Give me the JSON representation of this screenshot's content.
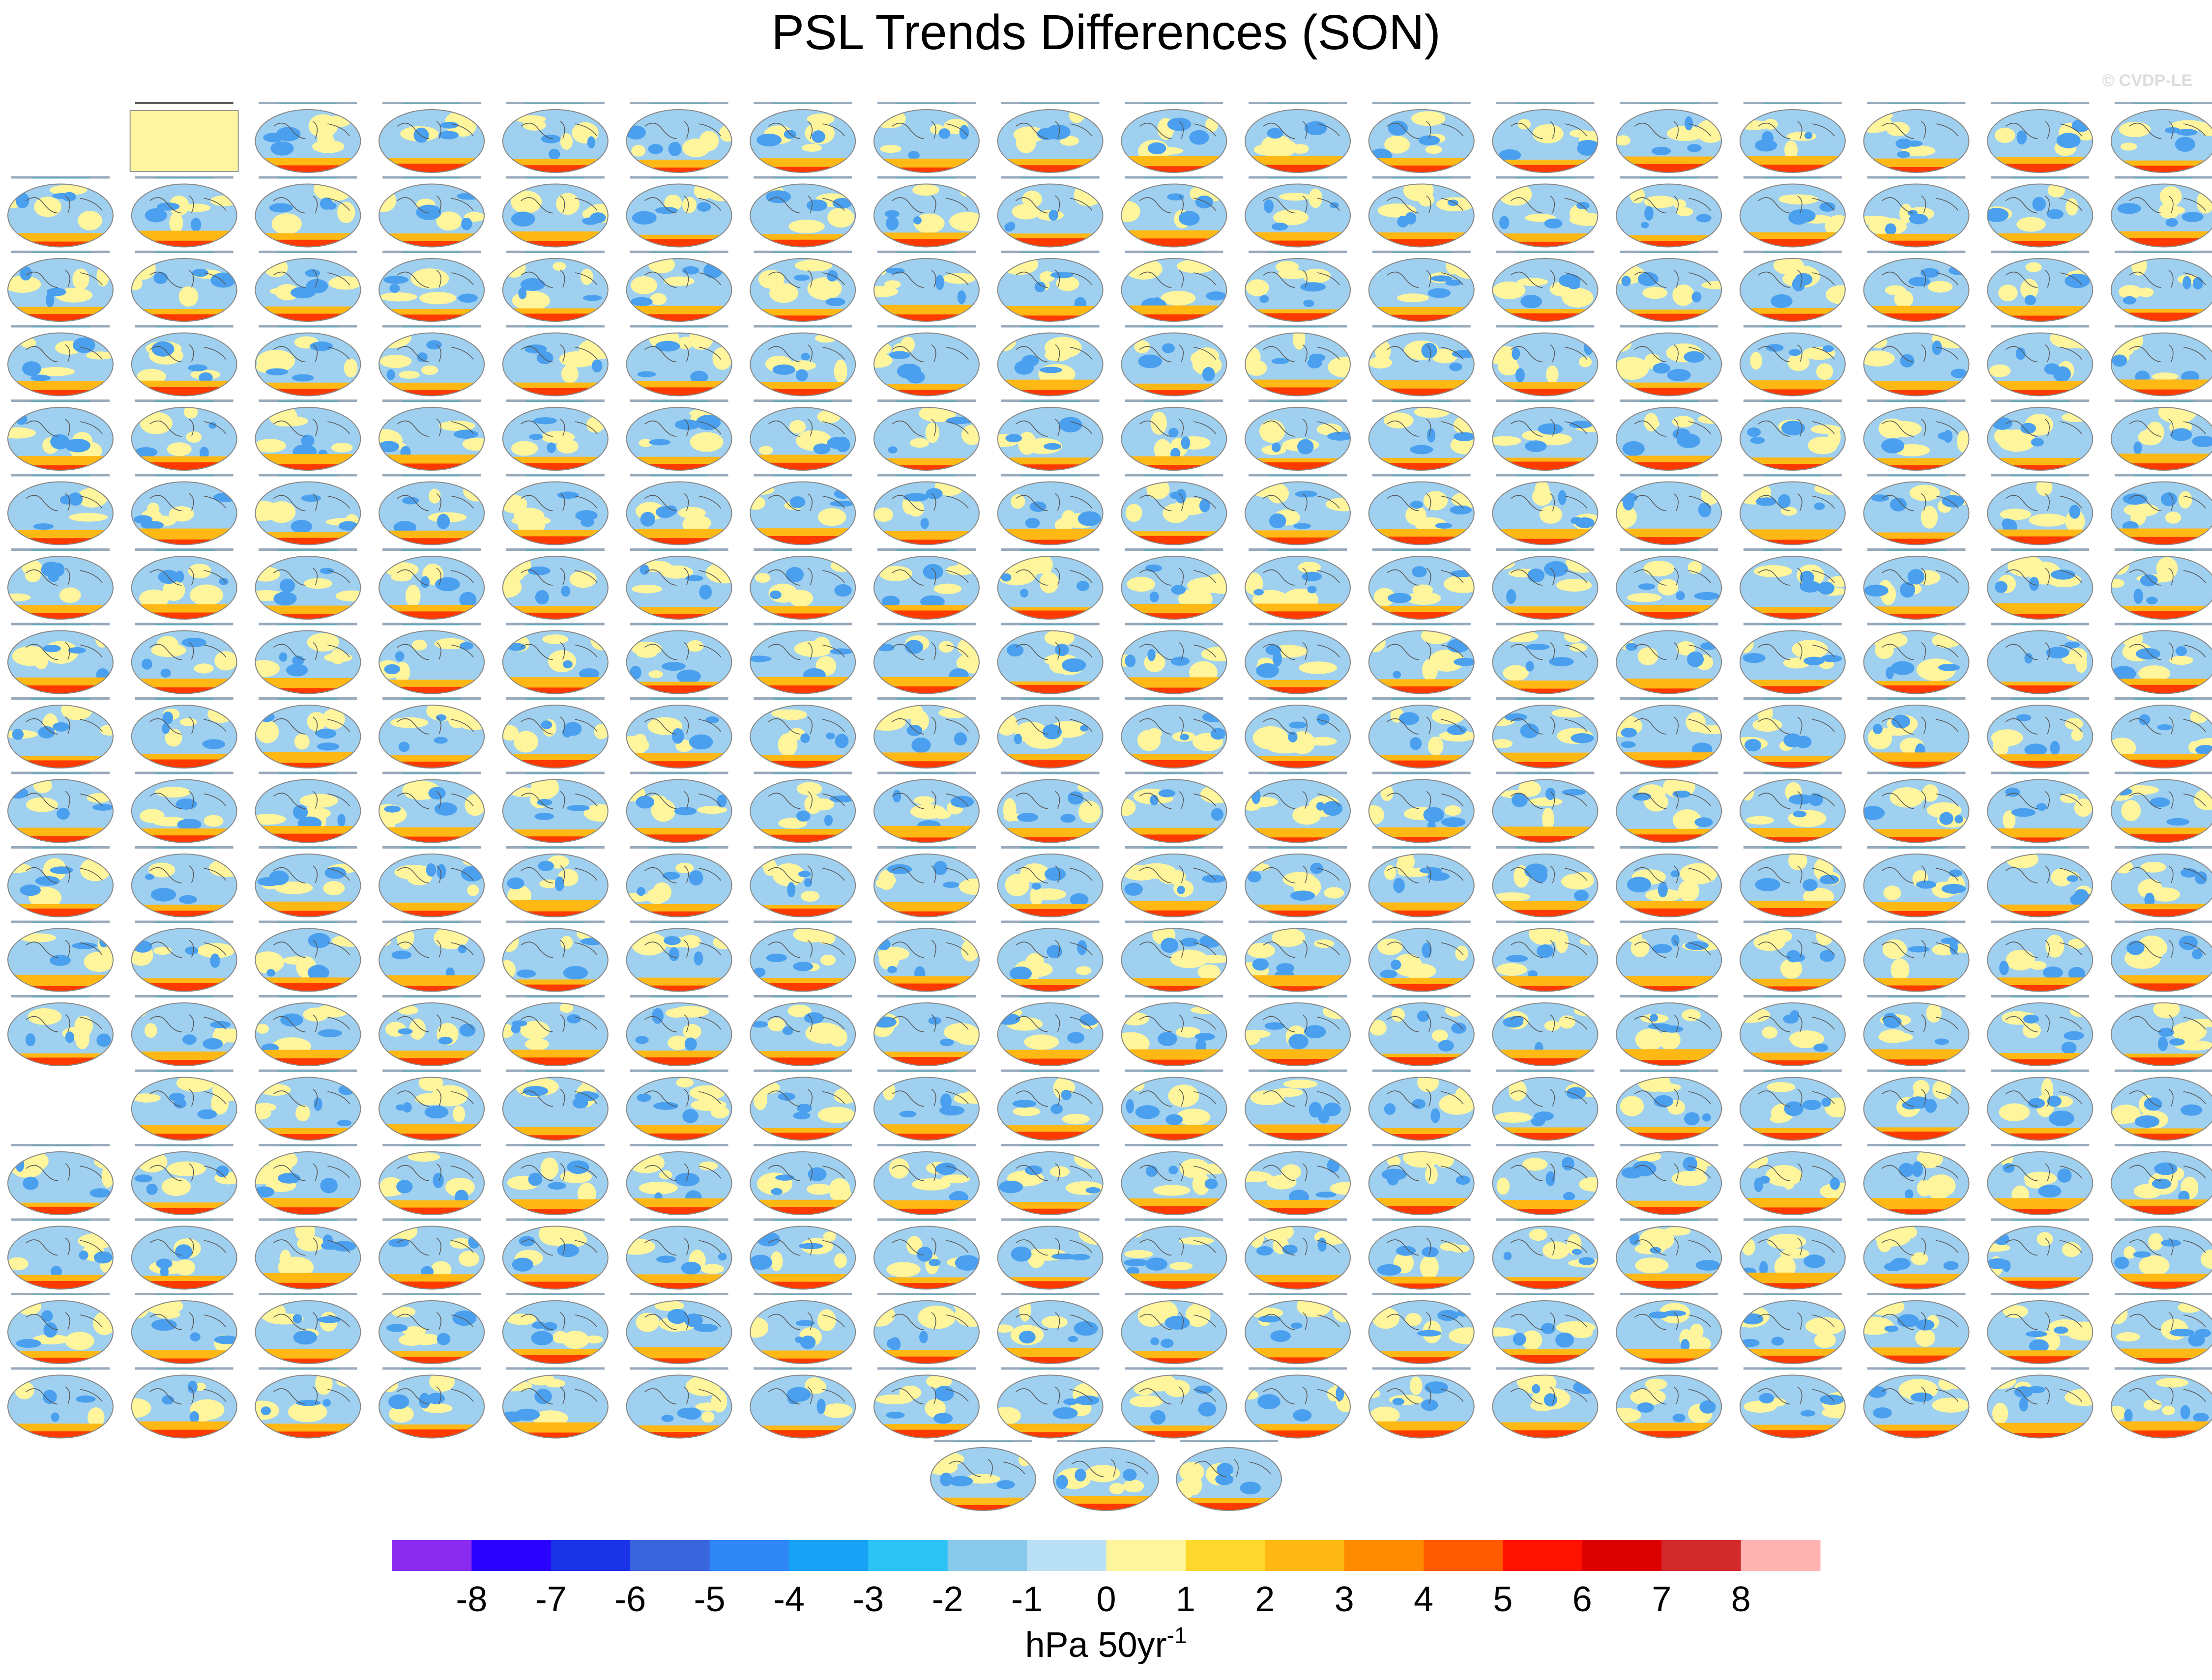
{
  "title": "PSL Trends Differences (SON)",
  "watermark": "© CVDP-LE",
  "colorbar": {
    "colors": [
      "#8c2bf0",
      "#2a00ff",
      "#1a33e6",
      "#3a66dd",
      "#2f86f5",
      "#18a2f5",
      "#2ec3f5",
      "#88c9ec",
      "#b9e0f4",
      "#fff59c",
      "#ffd82e",
      "#ffb814",
      "#ff8c00",
      "#ff5a00",
      "#ff1200",
      "#dd0000",
      "#d22a2a",
      "#ffb3b3"
    ],
    "labels": [
      -8,
      -7,
      -6,
      -5,
      -4,
      -3,
      -2,
      -1,
      0,
      1,
      2,
      3,
      4,
      5,
      6,
      7,
      8
    ],
    "unit": "hPa 50yr",
    "unit_exponent": "-1"
  }
}
